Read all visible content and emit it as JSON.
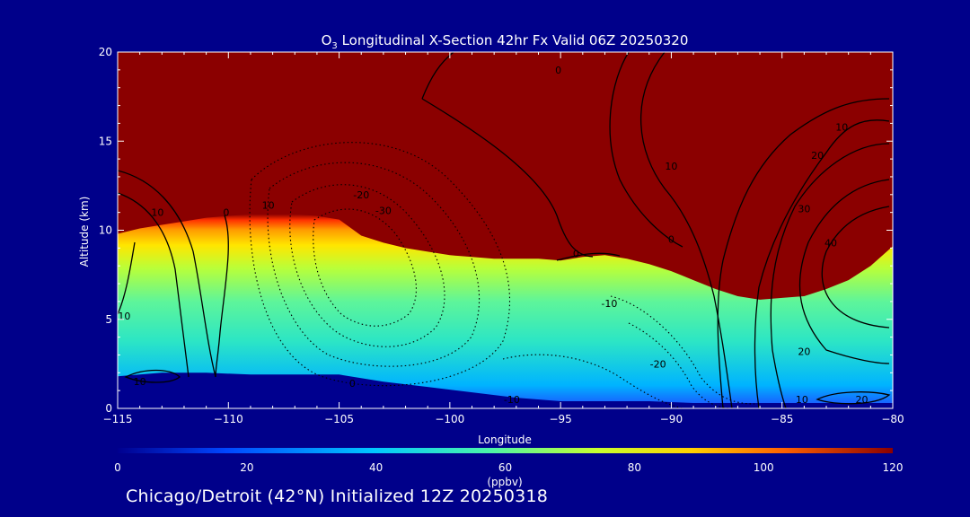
{
  "chart_data": {
    "type": "heatmap",
    "title": "O3 Longitudinal X-Section 42hr  Fx Valid 06Z 20250320",
    "title_parts": {
      "species": "O",
      "subscript": "3",
      "rest": " Longitudinal X-Section 42hr  Fx Valid 06Z 20250320"
    },
    "xlabel": "Longitude",
    "ylabel": "Altitude (km)",
    "xlim": [
      -115,
      -80
    ],
    "ylim": [
      0,
      20
    ],
    "x_ticks": [
      -115,
      -110,
      -105,
      -100,
      -95,
      -90,
      -85,
      -80
    ],
    "x_tick_labels": [
      "−115",
      "−110",
      "−105",
      "−100",
      "−95",
      "−90",
      "−85",
      "−80"
    ],
    "y_ticks": [
      0,
      5,
      10,
      15,
      20
    ],
    "y_tick_labels": [
      "0",
      "5",
      "10",
      "15",
      "20"
    ],
    "colorbar": {
      "label": "(ppbv)",
      "range": [
        0,
        120
      ],
      "ticks": [
        0,
        20,
        40,
        60,
        80,
        100,
        120
      ],
      "tick_labels": [
        "0",
        "20",
        "40",
        "60",
        "80",
        "100",
        "120"
      ],
      "colors": [
        "#00008f",
        "#0047ff",
        "#00c8ff",
        "#4cf5a8",
        "#c8ff2e",
        "#ffd000",
        "#ff6000",
        "#8b0000"
      ]
    },
    "ozone_top_boundary": {
      "longitude": [
        -115,
        -114,
        -113,
        -112,
        -111,
        -110,
        -109,
        -108,
        -107,
        -106,
        -105,
        -104,
        -103,
        -102,
        -101,
        -100,
        -99,
        -98,
        -97,
        -96,
        -95,
        -94,
        -93,
        -92,
        -91,
        -90,
        -89,
        -88,
        -87,
        -86,
        -85,
        -84,
        -83,
        -82,
        -81,
        -80
      ],
      "altitude_km": [
        9.8,
        10.1,
        10.3,
        10.5,
        10.7,
        10.8,
        10.9,
        10.9,
        10.9,
        10.8,
        10.6,
        9.7,
        9.3,
        9.0,
        8.8,
        8.6,
        8.5,
        8.4,
        8.4,
        8.4,
        8.3,
        8.5,
        8.6,
        8.4,
        8.1,
        7.7,
        7.2,
        6.7,
        6.3,
        6.1,
        6.2,
        6.3,
        6.7,
        7.2,
        8.0,
        9.1
      ]
    },
    "ozone_bottom_boundary": {
      "longitude": [
        -115,
        -113,
        -111,
        -109,
        -107,
        -105,
        -103,
        -101,
        -99,
        -97,
        -95,
        -93,
        -91,
        -89,
        -87,
        -85,
        -83,
        -81,
        -80
      ],
      "altitude_km": [
        1.8,
        2.0,
        2.0,
        1.9,
        1.9,
        1.9,
        1.5,
        1.2,
        0.9,
        0.6,
        0.4,
        0.4,
        0.4,
        0.3,
        0.3,
        0.3,
        0.3,
        0.3,
        0.3
      ]
    },
    "contour_labels": [
      {
        "text": "0",
        "lon": -95.1,
        "alt": 18.8
      },
      {
        "text": "10",
        "lon": -90.0,
        "alt": 13.4
      },
      {
        "text": "10",
        "lon": -82.3,
        "alt": 15.6
      },
      {
        "text": "20",
        "lon": -83.4,
        "alt": 14.0
      },
      {
        "text": "30",
        "lon": -84.0,
        "alt": 11.0
      },
      {
        "text": "40",
        "lon": -82.8,
        "alt": 9.1
      },
      {
        "text": "10",
        "lon": -113.2,
        "alt": 10.8
      },
      {
        "text": "0",
        "lon": -110.1,
        "alt": 10.8
      },
      {
        "text": "10",
        "lon": -108.2,
        "alt": 11.2
      },
      {
        "text": "-20",
        "lon": -104.0,
        "alt": 11.8
      },
      {
        "text": "-30",
        "lon": -103.0,
        "alt": 10.9
      },
      {
        "text": "0",
        "lon": -94.3,
        "alt": 8.5
      },
      {
        "text": "0",
        "lon": -90.0,
        "alt": 9.3
      },
      {
        "text": "-10",
        "lon": -92.8,
        "alt": 5.7
      },
      {
        "text": "10",
        "lon": -114.7,
        "alt": 5.0
      },
      {
        "text": "20",
        "lon": -84.0,
        "alt": 3.0
      },
      {
        "text": "-20",
        "lon": -90.6,
        "alt": 2.3
      },
      {
        "text": "10",
        "lon": -114.0,
        "alt": 1.3
      },
      {
        "text": "0",
        "lon": -104.4,
        "alt": 1.2
      },
      {
        "text": "-10",
        "lon": -97.2,
        "alt": 0.3
      },
      {
        "text": "10",
        "lon": -84.1,
        "alt": 0.3
      },
      {
        "text": "20",
        "lon": -81.4,
        "alt": 0.3
      }
    ]
  },
  "footer": {
    "text": "Chicago/Detroit (42°N) Initialized 12Z 20250318"
  }
}
